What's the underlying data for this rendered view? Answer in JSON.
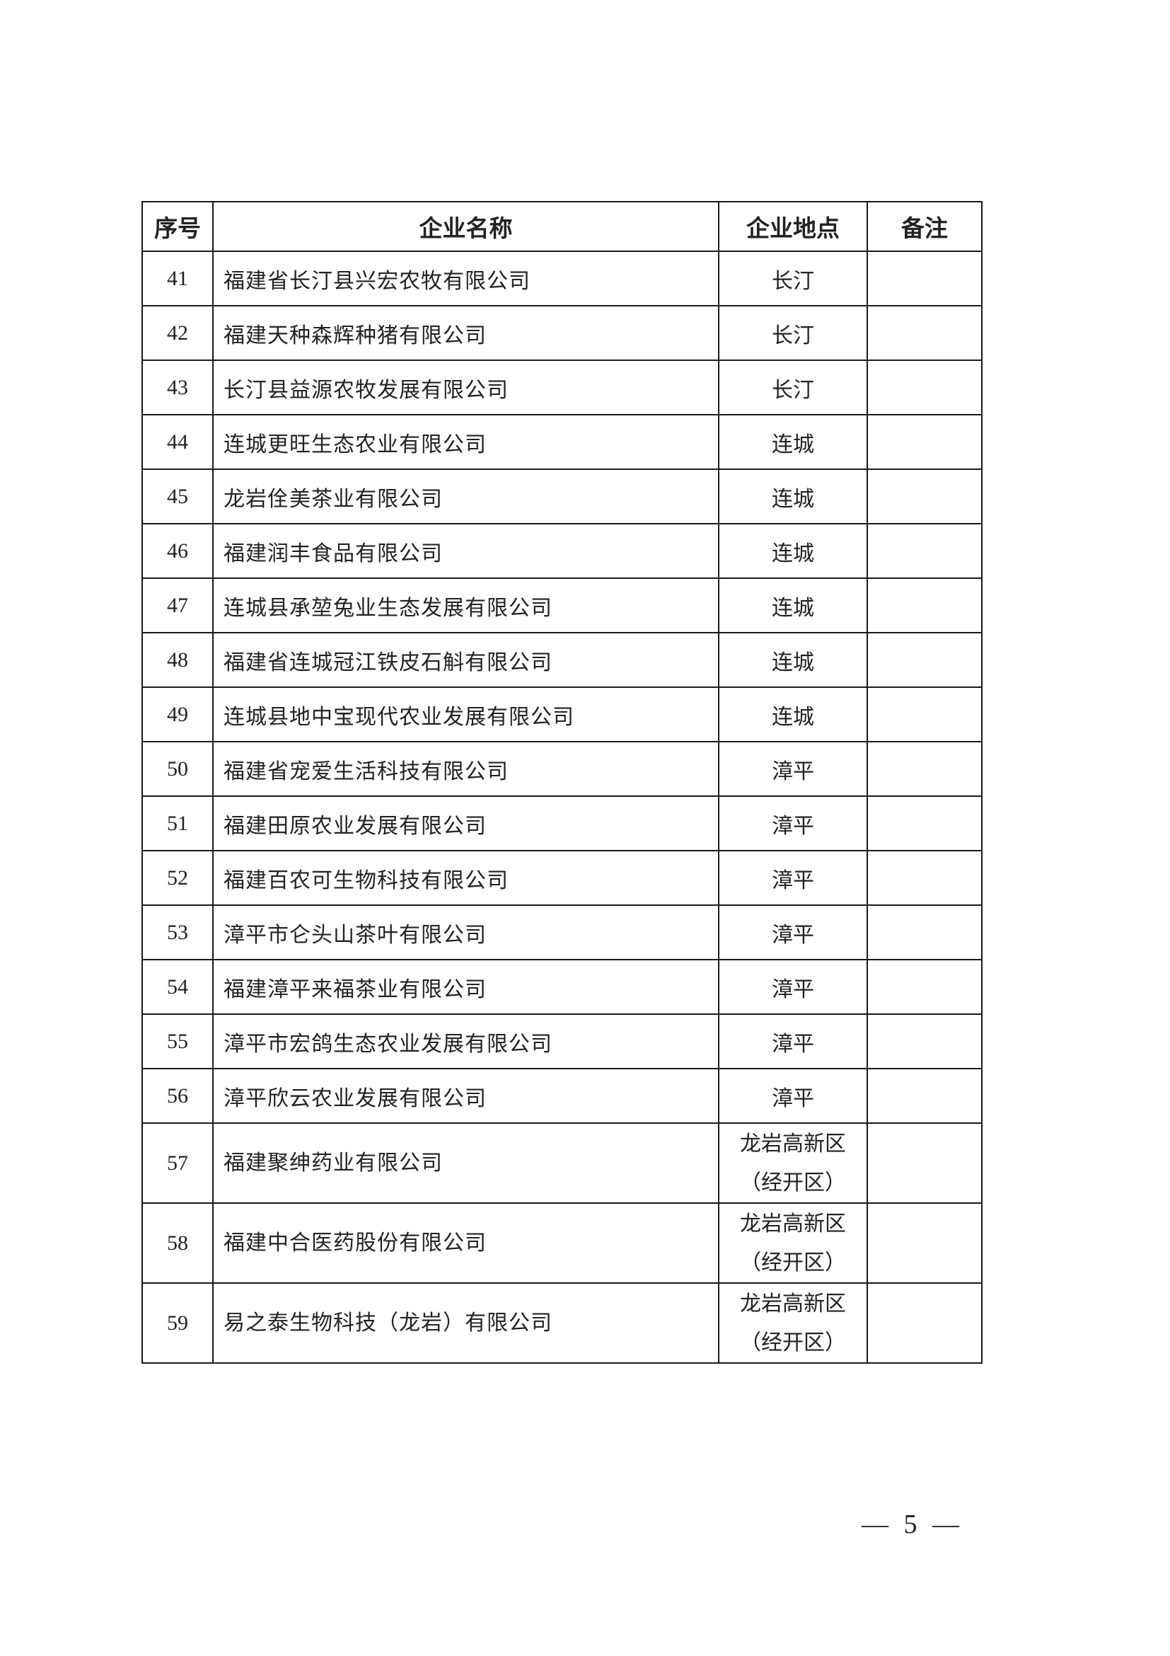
{
  "table": {
    "headers": [
      "序号",
      "企业名称",
      "企业地点",
      "备注"
    ],
    "rows": [
      {
        "no": "41",
        "name": "福建省长汀县兴宏农牧有限公司",
        "location": "长汀",
        "note": ""
      },
      {
        "no": "42",
        "name": "福建天种森辉种猪有限公司",
        "location": "长汀",
        "note": ""
      },
      {
        "no": "43",
        "name": "长汀县益源农牧发展有限公司",
        "location": "长汀",
        "note": ""
      },
      {
        "no": "44",
        "name": "连城更旺生态农业有限公司",
        "location": "连城",
        "note": ""
      },
      {
        "no": "45",
        "name": "龙岩佺美茶业有限公司",
        "location": "连城",
        "note": ""
      },
      {
        "no": "46",
        "name": "福建润丰食品有限公司",
        "location": "连城",
        "note": ""
      },
      {
        "no": "47",
        "name": "连城县承堃兔业生态发展有限公司",
        "location": "连城",
        "note": ""
      },
      {
        "no": "48",
        "name": "福建省连城冠江铁皮石斛有限公司",
        "location": "连城",
        "note": ""
      },
      {
        "no": "49",
        "name": "连城县地中宝现代农业发展有限公司",
        "location": "连城",
        "note": ""
      },
      {
        "no": "50",
        "name": "福建省宠爱生活科技有限公司",
        "location": "漳平",
        "note": ""
      },
      {
        "no": "51",
        "name": "福建田原农业发展有限公司",
        "location": "漳平",
        "note": ""
      },
      {
        "no": "52",
        "name": "福建百农可生物科技有限公司",
        "location": "漳平",
        "note": ""
      },
      {
        "no": "53",
        "name": "漳平市仑头山茶叶有限公司",
        "location": "漳平",
        "note": ""
      },
      {
        "no": "54",
        "name": "福建漳平来福茶业有限公司",
        "location": "漳平",
        "note": ""
      },
      {
        "no": "55",
        "name": "漳平市宏鸽生态农业发展有限公司",
        "location": "漳平",
        "note": ""
      },
      {
        "no": "56",
        "name": "漳平欣云农业发展有限公司",
        "location": "漳平",
        "note": ""
      },
      {
        "no": "57",
        "name": "福建聚绅药业有限公司",
        "location": "龙岩高新区",
        "location2": "（经开区）",
        "note": ""
      },
      {
        "no": "58",
        "name": "福建中合医药股份有限公司",
        "location": "龙岩高新区",
        "location2": "（经开区）",
        "note": ""
      },
      {
        "no": "59",
        "name": "易之泰生物科技（龙岩）有限公司",
        "location": "龙岩高新区",
        "location2": "（经开区）",
        "note": ""
      }
    ]
  },
  "footer": {
    "page_number": "— 5 —"
  }
}
